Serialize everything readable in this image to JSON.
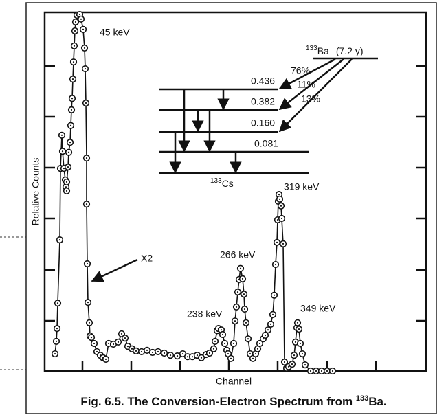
{
  "chart_data": {
    "type": "line",
    "x_label": "Channel",
    "y_label": "Relative Counts",
    "caption": {
      "text": "Fig. 6.5. The Conversion-Electron Spectrum from ",
      "sup": "133",
      "tail": "Ba."
    },
    "xlim": [
      0,
      555
    ],
    "ylim": [
      0,
      100
    ],
    "x": [
      15,
      17,
      18,
      19,
      22,
      23,
      25,
      26,
      28,
      30,
      31,
      32,
      32,
      34,
      35,
      37,
      38,
      39,
      40,
      41,
      42,
      43,
      44,
      45,
      47,
      51,
      53,
      56,
      58,
      59,
      60,
      61,
      61,
      62,
      63,
      65,
      66,
      68,
      72,
      76,
      81,
      85,
      89,
      93,
      100,
      107,
      112,
      117,
      121,
      127,
      133,
      141,
      149,
      157,
      165,
      174,
      183,
      193,
      201,
      208,
      215,
      222,
      228,
      235,
      240,
      246,
      248,
      251,
      253,
      257,
      259,
      262,
      265,
      267,
      271,
      275,
      277,
      279,
      281,
      283,
      285,
      288,
      290,
      291,
      293,
      296,
      299,
      303,
      307,
      310,
      313,
      318,
      321,
      325,
      329,
      332,
      334,
      336,
      338,
      339,
      340,
      341,
      342,
      344,
      345,
      347,
      349,
      352,
      355,
      360,
      363,
      365,
      367,
      368,
      370,
      372,
      375,
      379,
      387,
      395,
      403,
      411,
      419
    ],
    "values": [
      4.8,
      8.3,
      11.9,
      19.0,
      36.7,
      56.7,
      66.0,
      61.5,
      56.7,
      53.5,
      51.5,
      50.4,
      52.9,
      57.1,
      61.2,
      64.0,
      68.7,
      73.1,
      76.3,
      81.7,
      86.5,
      91.0,
      95.2,
      97.7,
      99.6,
      99.8,
      98.5,
      95.6,
      90.4,
      84.6,
      75.0,
      59.6,
      46.7,
      30.0,
      19.2,
      13.5,
      9.8,
      9.4,
      7.7,
      5.4,
      4.4,
      3.7,
      3.3,
      7.7,
      7.5,
      8.1,
      10.4,
      9.2,
      6.9,
      6.2,
      5.6,
      5.4,
      5.8,
      5.2,
      5.4,
      5.0,
      4.4,
      4.2,
      4.8,
      4.0,
      4.0,
      4.4,
      3.7,
      4.6,
      5.0,
      6.2,
      8.3,
      11.3,
      11.9,
      11.5,
      10.2,
      7.7,
      5.8,
      4.8,
      3.5,
      7.7,
      14.0,
      17.9,
      22.1,
      25.6,
      28.7,
      25.8,
      21.5,
      17.3,
      13.5,
      9.0,
      4.8,
      3.5,
      4.8,
      6.2,
      7.7,
      9.0,
      10.0,
      11.5,
      13.1,
      15.8,
      21.2,
      29.8,
      36.0,
      42.3,
      47.5,
      49.4,
      48.1,
      46.2,
      42.7,
      35.6,
      2.5,
      0.8,
      1.2,
      1.9,
      4.4,
      8.1,
      12.1,
      13.5,
      11.7,
      7.7,
      4.8,
      1.7,
      0,
      0,
      0,
      0,
      0
    ],
    "color": "#111111",
    "annotations": [
      "45 keV",
      "X2",
      "238 keV",
      "266 keV",
      "319 keV",
      "349 keV"
    ],
    "decay_scheme": {
      "parent": {
        "mass": "133",
        "symbol": "Ba",
        "half_life": "(7.2 y)"
      },
      "daughter": {
        "mass": "133",
        "symbol": "Cs"
      },
      "levels": [
        "0.436",
        "0.382",
        "0.160",
        "0.081"
      ],
      "branches": [
        "76%",
        "11%",
        "13%"
      ]
    }
  }
}
